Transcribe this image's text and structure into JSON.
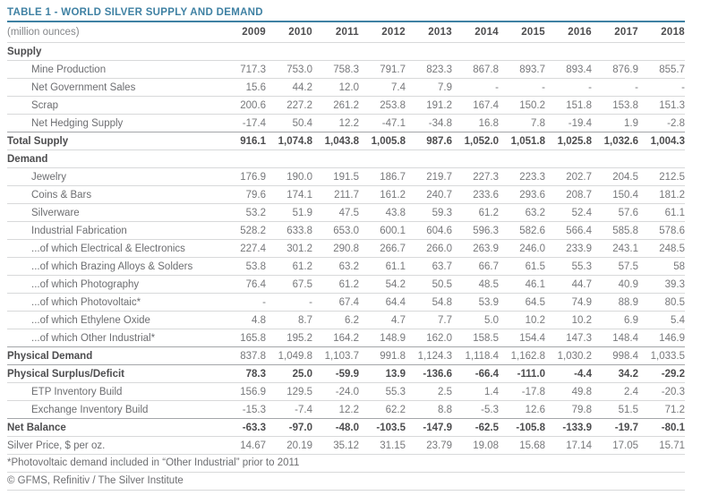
{
  "title": "TABLE 1 - WORLD SILVER SUPPLY AND DEMAND",
  "colors": {
    "accent": "#3f81a3",
    "dark_text": "#4d4d4f",
    "label_text": "#6d6e71",
    "value_text": "#77787b",
    "light_rule": "#d8d9da",
    "dark_rule": "#a4a6a9",
    "background": "#ffffff"
  },
  "chart_data": {
    "type": "table",
    "title": "TABLE 1 - WORLD SILVER SUPPLY AND DEMAND",
    "unit_label": "(million ounces)",
    "columns": [
      "2009",
      "2010",
      "2011",
      "2012",
      "2013",
      "2014",
      "2015",
      "2016",
      "2017",
      "2018"
    ],
    "rows": [
      {
        "label": "Supply",
        "style": "section",
        "sep": "light",
        "values": []
      },
      {
        "label": "Mine Production",
        "style": "item",
        "sep": "light",
        "values": [
          "717.3",
          "753.0",
          "758.3",
          "791.7",
          "823.3",
          "867.8",
          "893.7",
          "893.4",
          "876.9",
          "855.7"
        ]
      },
      {
        "label": "Net Government Sales",
        "style": "item",
        "sep": "light",
        "values": [
          "15.6",
          "44.2",
          "12.0",
          "7.4",
          "7.9",
          "-",
          "-",
          "-",
          "-",
          "-"
        ]
      },
      {
        "label": "Scrap",
        "style": "item",
        "sep": "light",
        "values": [
          "200.6",
          "227.2",
          "261.2",
          "253.8",
          "191.2",
          "167.4",
          "150.2",
          "151.8",
          "153.8",
          "151.3"
        ]
      },
      {
        "label": "Net Hedging Supply",
        "style": "item",
        "sep": "light",
        "values": [
          "-17.4",
          "50.4",
          "12.2",
          "-47.1",
          "-34.8",
          "16.8",
          "7.8",
          "-19.4",
          "1.9",
          "-2.8"
        ]
      },
      {
        "label": "Total Supply",
        "style": "total",
        "sep": "dark",
        "values": [
          "916.1",
          "1,074.8",
          "1,043.8",
          "1,005.8",
          "987.6",
          "1,052.0",
          "1,051.8",
          "1,025.8",
          "1,032.6",
          "1,004.3"
        ]
      },
      {
        "label": "Demand",
        "style": "section",
        "sep": "light",
        "values": []
      },
      {
        "label": "Jewelry",
        "style": "item",
        "sep": "light",
        "values": [
          "176.9",
          "190.0",
          "191.5",
          "186.7",
          "219.7",
          "227.3",
          "223.3",
          "202.7",
          "204.5",
          "212.5"
        ]
      },
      {
        "label": "Coins & Bars",
        "style": "item",
        "sep": "light",
        "values": [
          "79.6",
          "174.1",
          "211.7",
          "161.2",
          "240.7",
          "233.6",
          "293.6",
          "208.7",
          "150.4",
          "181.2"
        ]
      },
      {
        "label": "Silverware",
        "style": "item",
        "sep": "light",
        "values": [
          "53.2",
          "51.9",
          "47.5",
          "43.8",
          "59.3",
          "61.2",
          "63.2",
          "52.4",
          "57.6",
          "61.1"
        ]
      },
      {
        "label": "Industrial Fabrication",
        "style": "item",
        "sep": "light",
        "values": [
          "528.2",
          "633.8",
          "653.0",
          "600.1",
          "604.6",
          "596.3",
          "582.6",
          "566.4",
          "585.8",
          "578.6"
        ]
      },
      {
        "label": "...of which Electrical & Electronics",
        "style": "item",
        "sep": "light",
        "values": [
          "227.4",
          "301.2",
          "290.8",
          "266.7",
          "266.0",
          "263.9",
          "246.0",
          "233.9",
          "243.1",
          "248.5"
        ]
      },
      {
        "label": "...of which Brazing Alloys & Solders",
        "style": "item",
        "sep": "light",
        "values": [
          "53.8",
          "61.2",
          "63.2",
          "61.1",
          "63.7",
          "66.7",
          "61.5",
          "55.3",
          "57.5",
          "58"
        ]
      },
      {
        "label": "...of which Photography",
        "style": "item",
        "sep": "light",
        "values": [
          "76.4",
          "67.5",
          "61.2",
          "54.2",
          "50.5",
          "48.5",
          "46.1",
          "44.7",
          "40.9",
          "39.3"
        ]
      },
      {
        "label": "...of which Photovoltaic*",
        "style": "item",
        "sep": "light",
        "values": [
          "-",
          "-",
          "67.4",
          "64.4",
          "54.8",
          "53.9",
          "64.5",
          "74.9",
          "88.9",
          "80.5"
        ]
      },
      {
        "label": "...of which Ethylene Oxide",
        "style": "item",
        "sep": "light",
        "values": [
          "4.8",
          "8.7",
          "6.2",
          "4.7",
          "7.7",
          "5.0",
          "10.2",
          "10.2",
          "6.9",
          "5.4"
        ]
      },
      {
        "label": "...of which Other Industrial*",
        "style": "item",
        "sep": "light",
        "values": [
          "165.8",
          "195.2",
          "164.2",
          "148.9",
          "162.0",
          "158.5",
          "154.4",
          "147.3",
          "148.4",
          "146.9"
        ]
      },
      {
        "label": "Physical Demand",
        "style": "total-light",
        "sep": "dark",
        "values": [
          "837.8",
          "1,049.8",
          "1,103.7",
          "991.8",
          "1,124.3",
          "1,118.4",
          "1,162.8",
          "1,030.2",
          "998.4",
          "1,033.5"
        ]
      },
      {
        "label": "Physical Surplus/Deficit",
        "style": "total",
        "sep": "dark",
        "values": [
          "78.3",
          "25.0",
          "-59.9",
          "13.9",
          "-136.6",
          "-66.4",
          "-111.0",
          "-4.4",
          "34.2",
          "-29.2"
        ]
      },
      {
        "label": "ETP Inventory Build",
        "style": "item",
        "sep": "light",
        "values": [
          "156.9",
          "129.5",
          "-24.0",
          "55.3",
          "2.5",
          "1.4",
          "-17.8",
          "49.8",
          "2.4",
          "-20.3"
        ]
      },
      {
        "label": "Exchange Inventory Build",
        "style": "item",
        "sep": "light",
        "values": [
          "-15.3",
          "-7.4",
          "12.2",
          "62.2",
          "8.8",
          "-5.3",
          "12.6",
          "79.8",
          "51.5",
          "71.2"
        ]
      },
      {
        "label": "Net Balance",
        "style": "total",
        "sep": "dark",
        "values": [
          "-63.3",
          "-97.0",
          "-48.0",
          "-103.5",
          "-147.9",
          "-62.5",
          "-105.8",
          "-133.9",
          "-19.7",
          "-80.1"
        ]
      },
      {
        "label": "Silver Price, $ per oz.",
        "style": "plain",
        "sep": "light",
        "values": [
          "14.67",
          "20.19",
          "35.12",
          "31.15",
          "23.79",
          "19.08",
          "15.68",
          "17.14",
          "17.05",
          "15.71"
        ]
      }
    ],
    "footnotes": [
      "*Photovoltaic demand included in “Other Industrial” prior to 2011",
      "© GFMS, Refinitiv / The Silver Institute"
    ]
  }
}
